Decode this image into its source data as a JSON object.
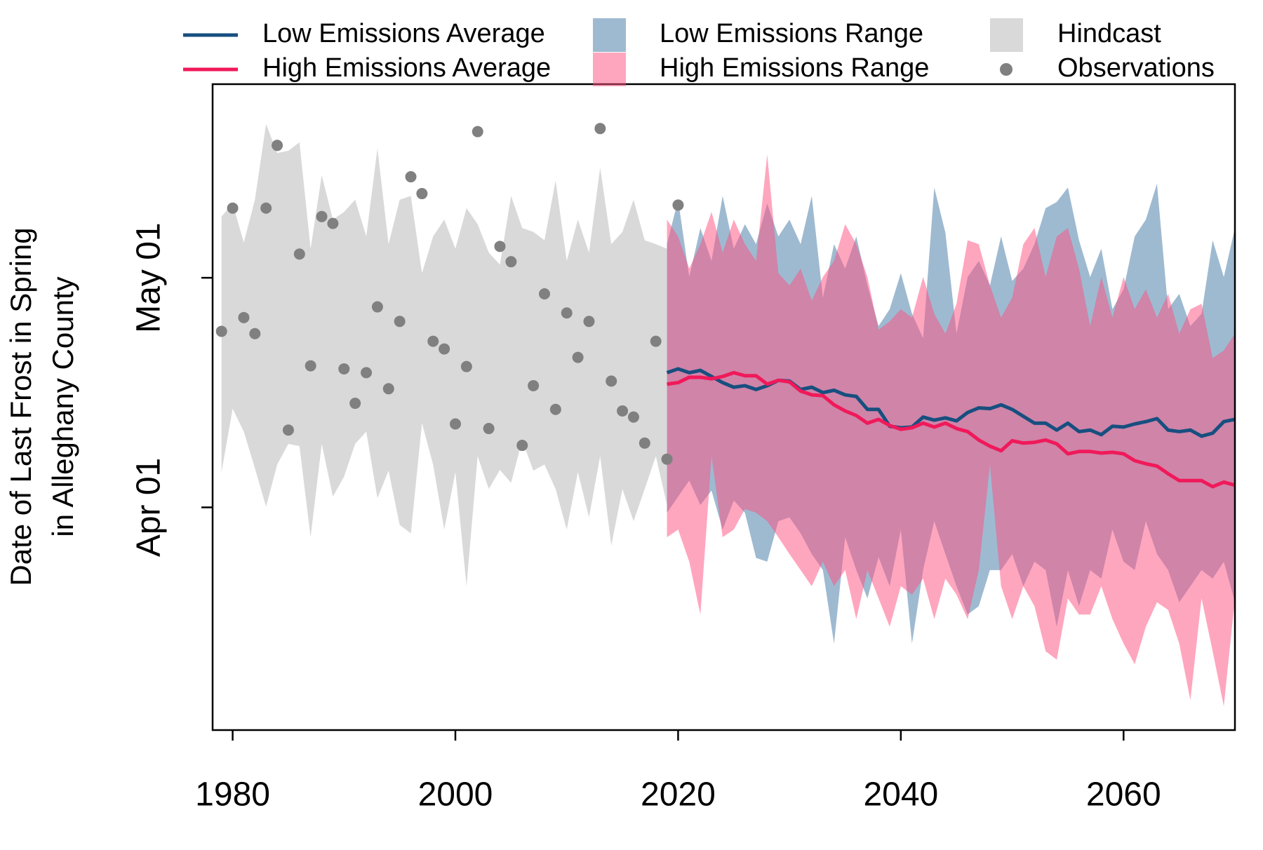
{
  "chart_data": {
    "type": "line",
    "y_label": [
      "Date of Last Frost in Spring",
      "in Alleghany County"
    ],
    "xlim": [
      1978.2,
      2070
    ],
    "ylim": [
      61.9,
      146.3
    ],
    "xticks": [
      1980,
      2000,
      2020,
      2040,
      2060
    ],
    "yticks": [
      {
        "value": 91,
        "label": "Apr 01"
      },
      {
        "value": 121,
        "label": "May 01"
      }
    ],
    "grid": false,
    "legend": "top",
    "series": [
      {
        "name": "Low Emissions Average",
        "type": "line",
        "color": "#174f7f",
        "x": [
          2019,
          2020,
          2021,
          2022,
          2023,
          2024,
          2025,
          2026,
          2027,
          2028,
          2029,
          2030,
          2031,
          2032,
          2033,
          2034,
          2035,
          2036,
          2037,
          2038,
          2039,
          2040,
          2041,
          2042,
          2043,
          2044,
          2045,
          2046,
          2047,
          2048,
          2049,
          2050,
          2051,
          2052,
          2053,
          2054,
          2055,
          2056,
          2057,
          2058,
          2059,
          2060,
          2061,
          2062,
          2063,
          2064,
          2065,
          2066,
          2067,
          2068,
          2069,
          2070
        ],
        "values": [
          108.6,
          109.1,
          108.6,
          108.9,
          108.1,
          107.3,
          106.7,
          106.9,
          106.4,
          106.9,
          107.6,
          107.5,
          106.4,
          106.7,
          106.0,
          106.3,
          105.7,
          105.5,
          103.8,
          103.8,
          101.6,
          101.4,
          101.5,
          102.8,
          102.4,
          102.7,
          102.3,
          103.4,
          104.0,
          103.9,
          104.4,
          103.8,
          102.9,
          102.0,
          102.0,
          101.1,
          102.0,
          100.9,
          101.1,
          100.5,
          101.6,
          101.5,
          101.9,
          102.2,
          102.6,
          101.1,
          100.9,
          101.1,
          100.3,
          100.7,
          102.2,
          102.5
        ]
      },
      {
        "name": "High Emissions Average",
        "type": "line",
        "color": "#f0195a",
        "x": [
          2019,
          2020,
          2021,
          2022,
          2023,
          2024,
          2025,
          2026,
          2027,
          2028,
          2029,
          2030,
          2031,
          2032,
          2033,
          2034,
          2035,
          2036,
          2037,
          2038,
          2039,
          2040,
          2041,
          2042,
          2043,
          2044,
          2045,
          2046,
          2047,
          2048,
          2049,
          2050,
          2051,
          2052,
          2053,
          2054,
          2055,
          2056,
          2057,
          2058,
          2059,
          2060,
          2061,
          2062,
          2063,
          2064,
          2065,
          2066,
          2067,
          2068,
          2069,
          2070
        ],
        "values": [
          107.1,
          107.3,
          108.0,
          108.0,
          107.8,
          108.1,
          108.6,
          108.2,
          108.2,
          107.1,
          107.6,
          107.4,
          106.2,
          105.7,
          105.6,
          104.4,
          103.6,
          103.0,
          102.0,
          102.5,
          101.7,
          101.2,
          101.4,
          102.0,
          101.5,
          102.0,
          101.3,
          100.9,
          99.8,
          99.0,
          98.4,
          99.7,
          99.4,
          99.5,
          99.8,
          99.3,
          98.0,
          98.3,
          98.3,
          98.1,
          98.2,
          98.0,
          97.1,
          96.7,
          96.4,
          95.4,
          94.5,
          94.5,
          94.5,
          93.7,
          94.3,
          93.9
        ]
      },
      {
        "name": "Low Emissions Range",
        "type": "band",
        "color": "#3d76a4",
        "opacity": 0.5,
        "x": [
          2019,
          2020,
          2021,
          2022,
          2023,
          2024,
          2025,
          2026,
          2027,
          2028,
          2029,
          2030,
          2031,
          2032,
          2033,
          2034,
          2035,
          2036,
          2037,
          2038,
          2039,
          2040,
          2041,
          2042,
          2043,
          2044,
          2045,
          2046,
          2047,
          2048,
          2049,
          2050,
          2051,
          2052,
          2053,
          2054,
          2055,
          2056,
          2057,
          2058,
          2059,
          2060,
          2061,
          2062,
          2063,
          2064,
          2065,
          2066,
          2067,
          2068,
          2069,
          2070
        ],
        "upper": [
          125.4,
          131.2,
          121.1,
          127.5,
          123.2,
          131.7,
          124.8,
          128.0,
          125.4,
          130.7,
          126.4,
          128.6,
          125.4,
          131.7,
          118.4,
          125.4,
          122.2,
          126.4,
          120.0,
          114.7,
          116.9,
          121.6,
          116.3,
          113.1,
          132.8,
          126.9,
          113.7,
          121.1,
          123.2,
          120.0,
          126.4,
          120.6,
          122.2,
          125.4,
          130.1,
          130.9,
          132.8,
          125.9,
          121.1,
          124.8,
          116.9,
          119.5,
          126.4,
          128.6,
          133.3,
          116.9,
          118.9,
          114.7,
          116.3,
          125.9,
          121.1,
          127.5
        ],
        "lower": [
          90.3,
          92.4,
          94.5,
          91.3,
          93.2,
          88.1,
          91.9,
          90.3,
          84.4,
          83.9,
          89.2,
          89.7,
          87.6,
          84.9,
          82.8,
          73.2,
          87.1,
          82.8,
          79.1,
          84.5,
          80.7,
          88.1,
          73.2,
          82.8,
          89.2,
          84.9,
          80.7,
          77.0,
          78.1,
          82.8,
          82.8,
          84.9,
          80.7,
          83.9,
          82.8,
          75.4,
          82.8,
          78.1,
          82.8,
          81.7,
          88.1,
          83.9,
          82.8,
          89.2,
          84.9,
          82.8,
          78.6,
          80.7,
          82.8,
          81.7,
          83.9,
          78.6
        ]
      },
      {
        "name": "High Emissions Range",
        "type": "band",
        "color": "#ff4d80",
        "opacity": 0.5,
        "x": [
          2019,
          2020,
          2021,
          2022,
          2023,
          2024,
          2025,
          2026,
          2027,
          2028,
          2029,
          2030,
          2031,
          2032,
          2033,
          2034,
          2035,
          2036,
          2037,
          2038,
          2039,
          2040,
          2041,
          2042,
          2043,
          2044,
          2045,
          2046,
          2047,
          2048,
          2049,
          2050,
          2051,
          2052,
          2053,
          2054,
          2055,
          2056,
          2057,
          2058,
          2059,
          2060,
          2061,
          2062,
          2063,
          2064,
          2065,
          2066,
          2067,
          2068,
          2069,
          2070
        ],
        "upper": [
          128.6,
          126.4,
          122.2,
          125.4,
          129.6,
          124.3,
          128.6,
          125.4,
          123.2,
          137.1,
          121.6,
          120.0,
          122.2,
          118.0,
          121.1,
          123.2,
          128.0,
          125.4,
          121.1,
          114.2,
          115.3,
          116.9,
          115.8,
          121.1,
          116.3,
          113.7,
          117.6,
          125.9,
          125.4,
          120.0,
          115.8,
          118.4,
          125.4,
          127.5,
          121.1,
          126.4,
          127.5,
          122.2,
          114.7,
          121.1,
          115.8,
          121.1,
          116.9,
          119.5,
          115.8,
          118.9,
          113.7,
          116.9,
          117.6,
          110.5,
          111.5,
          113.7
        ],
        "lower": [
          87.1,
          88.1,
          83.9,
          77.0,
          97.7,
          87.1,
          88.1,
          90.8,
          90.3,
          89.2,
          87.1,
          84.9,
          82.8,
          80.7,
          83.9,
          80.7,
          82.8,
          76.4,
          82.8,
          79.1,
          75.4,
          80.7,
          79.6,
          81.7,
          76.4,
          81.7,
          79.6,
          76.4,
          82.8,
          96.6,
          80.7,
          76.4,
          80.7,
          78.1,
          72.2,
          71.1,
          79.1,
          77.0,
          77.0,
          80.7,
          76.4,
          73.2,
          70.5,
          75.4,
          78.6,
          77.6,
          73.2,
          65.8,
          79.1,
          72.2,
          65.0,
          79.1
        ]
      },
      {
        "name": "Hindcast",
        "type": "band",
        "color": "#d9d9d9",
        "opacity": 1,
        "x": [
          1979,
          1980,
          1981,
          1982,
          1983,
          1984,
          1985,
          1986,
          1987,
          1988,
          1989,
          1990,
          1991,
          1992,
          1993,
          1994,
          1995,
          1996,
          1997,
          1998,
          1999,
          2000,
          2001,
          2002,
          2003,
          2004,
          2005,
          2006,
          2007,
          2008,
          2009,
          2010,
          2011,
          2012,
          2013,
          2014,
          2015,
          2016,
          2017,
          2018,
          2019
        ],
        "upper": [
          129.0,
          130.7,
          125.6,
          131.2,
          141.1,
          137.3,
          137.6,
          138.7,
          124.8,
          134.4,
          128.6,
          129.6,
          131.2,
          126.4,
          137.9,
          125.4,
          131.2,
          131.7,
          121.6,
          126.4,
          128.6,
          124.8,
          130.1,
          128.0,
          124.3,
          122.7,
          131.7,
          127.5,
          127.0,
          125.9,
          133.7,
          123.2,
          128.6,
          124.3,
          135.4,
          125.4,
          127.0,
          131.2,
          125.9,
          125.4,
          124.8
        ],
        "lower": [
          95.6,
          103.9,
          100.9,
          96.1,
          91.1,
          96.6,
          99.3,
          99.0,
          87.1,
          99.3,
          92.4,
          95.0,
          99.3,
          100.9,
          92.2,
          95.8,
          88.7,
          87.6,
          102.0,
          96.6,
          88.1,
          95.6,
          80.7,
          97.7,
          93.4,
          95.9,
          94.2,
          99.8,
          95.8,
          96.6,
          93.4,
          88.1,
          95.6,
          89.7,
          97.7,
          86.0,
          93.4,
          89.2,
          93.4,
          97.7,
          91.3
        ]
      },
      {
        "name": "Observations",
        "type": "scatter",
        "color": "#808080",
        "x": [
          1979,
          1980,
          1981,
          1982,
          1983,
          1984,
          1985,
          1986,
          1987,
          1988,
          1989,
          1990,
          1991,
          1992,
          1993,
          1994,
          1995,
          1996,
          1997,
          1998,
          1999,
          2000,
          2001,
          2002,
          2003,
          2004,
          2005,
          2006,
          2007,
          2008,
          2009,
          2010,
          2011,
          2012,
          2013,
          2014,
          2015,
          2016,
          2017,
          2018,
          2019,
          2020
        ],
        "values": [
          114.0,
          130.1,
          115.8,
          113.7,
          130.1,
          138.3,
          101.1,
          124.1,
          109.5,
          129.0,
          128.1,
          109.1,
          104.6,
          108.6,
          117.2,
          106.5,
          115.3,
          134.2,
          132.0,
          112.7,
          111.7,
          101.9,
          109.4,
          140.1,
          101.3,
          125.1,
          123.1,
          99.1,
          106.9,
          118.9,
          103.8,
          116.4,
          110.6,
          115.3,
          140.5,
          107.5,
          103.6,
          102.8,
          99.4,
          112.7,
          97.3,
          130.5
        ]
      }
    ]
  }
}
